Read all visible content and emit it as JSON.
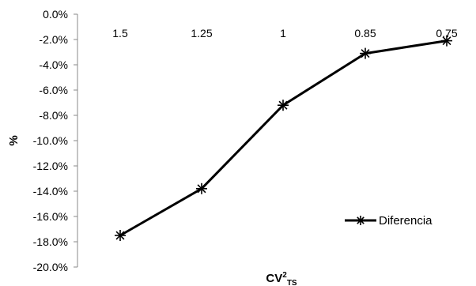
{
  "chart_data": {
    "type": "line",
    "x": [
      "1.5",
      "1.25",
      "1",
      "0.85",
      "0.75"
    ],
    "series": [
      {
        "name": "Diferencia",
        "values": [
          -17.5,
          -13.8,
          -7.2,
          -3.1,
          -2.1
        ]
      }
    ],
    "ylabel": "%",
    "xlabel": {
      "base": "CV",
      "sup": "2",
      "sub": "TS"
    },
    "ylim": [
      -20.0,
      0.0
    ],
    "yticks": [
      "0.0%",
      "-2.0%",
      "-4.0%",
      "-6.0%",
      "-8.0%",
      "-10.0%",
      "-12.0%",
      "-14.0%",
      "-16.0%",
      "-18.0%",
      "-20.0%"
    ],
    "grid": false,
    "legend_position": "bottom-right",
    "series_color": "#000000",
    "marker": "asterisk"
  }
}
